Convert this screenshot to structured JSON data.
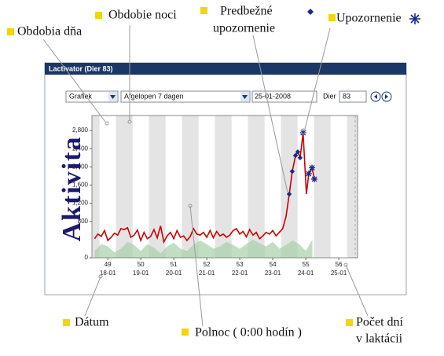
{
  "window": {
    "title": "Lactivator (Dier 83)"
  },
  "controls": {
    "view": "Grafiek",
    "period": "Afgelopen 7 dagen",
    "date": "25-01-2008",
    "animal_label": "Dier",
    "animal": "83"
  },
  "annotations": {
    "day_periods": "Obdobia dňa",
    "night_period": "Obdobie noci",
    "pre_alert": [
      "Predbežné",
      "upozornenie"
    ],
    "alert": "Upozornenie",
    "date": "Dátum",
    "midnight": "Polnoc ( 0:00 hodín )",
    "days_in_lactation": [
      "Počet dní",
      "v laktácii"
    ]
  },
  "chart_data": {
    "type": "line",
    "y_label": "Aktivita",
    "xlim": [
      48.52,
      56.57
    ],
    "xticks": [
      49,
      50,
      51,
      52,
      53,
      54,
      55,
      56
    ],
    "xtick_dates": [
      "18-01",
      "19-01",
      "20-01",
      "21-01",
      "22-01",
      "23-01",
      "24-01",
      "25-01"
    ],
    "ylim": [
      0,
      3130
    ],
    "yticks": [
      0,
      800,
      {
        "value": 1200,
        "label": "1,200"
      },
      {
        "value": 1600,
        "label": "1,600"
      },
      {
        "value": 2000,
        "label": "2,000"
      },
      {
        "value": 2400,
        "label": "2,400"
      },
      {
        "value": 2800,
        "label": "2,800"
      }
    ],
    "series": [
      {
        "color": "#cc0000",
        "x": [
          48.6,
          48.7,
          48.8,
          48.9,
          49.0,
          49.1,
          49.2,
          49.3,
          49.4,
          49.5,
          49.6,
          49.7,
          49.8,
          49.9,
          50.0,
          50.1,
          50.2,
          50.3,
          50.4,
          50.5,
          50.6,
          50.7,
          50.8,
          50.9,
          51.0,
          51.1,
          51.2,
          51.3,
          51.4,
          51.5,
          51.6,
          51.7,
          51.8,
          51.9,
          52.0,
          52.1,
          52.2,
          52.3,
          52.4,
          52.5,
          52.6,
          52.7,
          52.8,
          52.9,
          53.0,
          53.1,
          53.2,
          53.3,
          53.4,
          53.5,
          53.6,
          53.7,
          53.8,
          53.9,
          54.0,
          54.1,
          54.2,
          54.3,
          54.4,
          54.5,
          54.59,
          54.69,
          54.76,
          54.83,
          54.92,
          55.02,
          55.09,
          55.19,
          55.26
        ],
        "values": [
          420,
          520,
          470,
          600,
          380,
          450,
          540,
          500,
          640,
          620,
          660,
          450,
          500,
          610,
          380,
          560,
          420,
          470,
          620,
          440,
          700,
          350,
          480,
          560,
          420,
          600,
          450,
          480,
          380,
          470,
          640,
          520,
          500,
          560,
          450,
          600,
          440,
          580,
          480,
          520,
          450,
          500,
          600,
          640,
          520,
          580,
          460,
          620,
          500,
          560,
          420,
          480,
          560,
          520,
          600,
          480,
          560,
          640,
          900,
          1400,
          1900,
          2250,
          2330,
          2200,
          2750,
          1400,
          1850,
          1980,
          1730
        ]
      },
      {
        "color": "#a8d0a8",
        "area": true,
        "x": [
          48.6,
          48.8,
          49.0,
          49.2,
          49.4,
          49.6,
          49.8,
          50.0,
          50.2,
          50.4,
          50.6,
          50.8,
          51.0,
          51.2,
          51.4,
          51.6,
          51.8,
          52.0,
          52.2,
          52.4,
          52.6,
          52.8,
          53.0,
          53.2,
          53.4,
          53.6,
          53.8,
          54.0,
          54.2,
          54.4,
          54.6,
          54.8,
          55.0,
          55.2
        ],
        "values": [
          150,
          300,
          250,
          120,
          200,
          350,
          280,
          150,
          300,
          220,
          100,
          250,
          330,
          200,
          150,
          280,
          380,
          300,
          200,
          250,
          350,
          280,
          200,
          300,
          400,
          320,
          250,
          350,
          200,
          280,
          380,
          300,
          150,
          400
        ]
      }
    ],
    "alerts": [
      {
        "symbol": "diamond",
        "color": "#1a2a8a",
        "x": [
          54.5,
          54.59,
          54.69,
          54.76,
          54.83
        ],
        "values": [
          1400,
          1900,
          2250,
          2330,
          2200
        ]
      },
      {
        "symbol": "star",
        "color": "#1a2a8a",
        "x": [
          54.92,
          55.09,
          55.19,
          55.26
        ],
        "values": [
          2750,
          1850,
          1980,
          1730
        ]
      }
    ]
  }
}
